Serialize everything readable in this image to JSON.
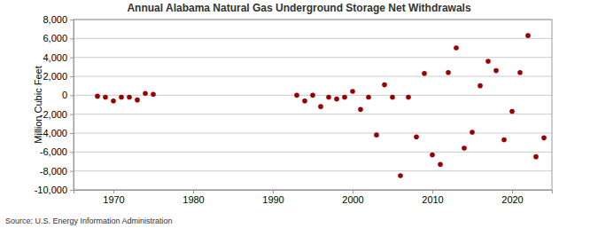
{
  "chart_data": {
    "type": "scatter",
    "title": "Annual Alabama Natural Gas Underground Storage Net Withdrawals",
    "y_label": "Million Cubic Feet",
    "annotations": [
      "Source: U.S. Energy Information Administration"
    ],
    "x": [
      1968,
      1969,
      1970,
      1971,
      1972,
      1973,
      1974,
      1975,
      1993,
      1994,
      1995,
      1996,
      1997,
      1998,
      1999,
      2000,
      2001,
      2002,
      2003,
      2004,
      2005,
      2006,
      2007,
      2008,
      2009,
      2010,
      2011,
      2012,
      2013,
      2014,
      2015,
      2016,
      2017,
      2018,
      2019,
      2020,
      2021,
      2022,
      2023,
      2024
    ],
    "values": [
      -100,
      -200,
      -600,
      -200,
      -200,
      -500,
      200,
      100,
      0,
      -600,
      0,
      -1200,
      -200,
      -400,
      -200,
      400,
      -1500,
      -200,
      -4200,
      1100,
      -200,
      -8500,
      -200,
      -4400,
      2300,
      -6300,
      -7300,
      2400,
      5000,
      -5600,
      -3900,
      1000,
      3600,
      2600,
      -4700,
      -1700,
      2400,
      6300,
      -6500,
      -4500
    ],
    "color": "#990000",
    "marker": "circle",
    "grid": true,
    "xlim": [
      1965,
      2025
    ],
    "xticks": [
      1970,
      1980,
      1990,
      2000,
      2010,
      2020
    ],
    "ylim": [
      -10000,
      8000
    ],
    "yticks": [
      {
        "value": -10000,
        "label": "-10,000"
      },
      {
        "value": -8000,
        "label": "-8,000"
      },
      {
        "value": -6000,
        "label": "-6,000"
      },
      {
        "value": -4000,
        "label": "-4,000"
      },
      {
        "value": -2000,
        "label": "-2,000"
      },
      0,
      {
        "value": 2000,
        "label": "2,000"
      },
      {
        "value": 4000,
        "label": "4,000"
      },
      {
        "value": 6000,
        "label": "6,000"
      },
      {
        "value": 8000,
        "label": "8,000"
      }
    ]
  }
}
